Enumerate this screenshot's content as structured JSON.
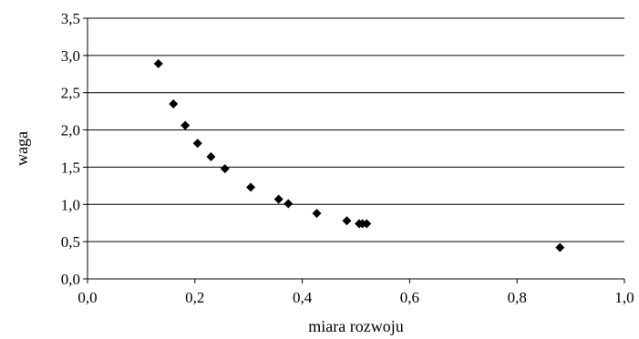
{
  "chart_data": {
    "type": "scatter",
    "title": "",
    "xlabel": "miara rozwoju",
    "ylabel": "waga",
    "xlim": [
      0,
      1
    ],
    "ylim": [
      0,
      3.5
    ],
    "x_ticks": [
      "0,0",
      "0,2",
      "0,4",
      "0,6",
      "0,8",
      "1,0"
    ],
    "y_ticks": [
      "0,0",
      "0,5",
      "1,0",
      "1,5",
      "2,0",
      "2,5",
      "3,0",
      "3,5"
    ],
    "grid": "horizontal",
    "marker": "diamond",
    "marker_color": "#000000",
    "points": [
      {
        "x": 0.132,
        "y": 2.89
      },
      {
        "x": 0.16,
        "y": 2.35
      },
      {
        "x": 0.182,
        "y": 2.06
      },
      {
        "x": 0.205,
        "y": 1.82
      },
      {
        "x": 0.23,
        "y": 1.64
      },
      {
        "x": 0.256,
        "y": 1.48
      },
      {
        "x": 0.304,
        "y": 1.23
      },
      {
        "x": 0.356,
        "y": 1.07
      },
      {
        "x": 0.374,
        "y": 1.01
      },
      {
        "x": 0.427,
        "y": 0.88
      },
      {
        "x": 0.483,
        "y": 0.78
      },
      {
        "x": 0.506,
        "y": 0.74
      },
      {
        "x": 0.512,
        "y": 0.74
      },
      {
        "x": 0.52,
        "y": 0.74
      },
      {
        "x": 0.88,
        "y": 0.42
      }
    ]
  }
}
